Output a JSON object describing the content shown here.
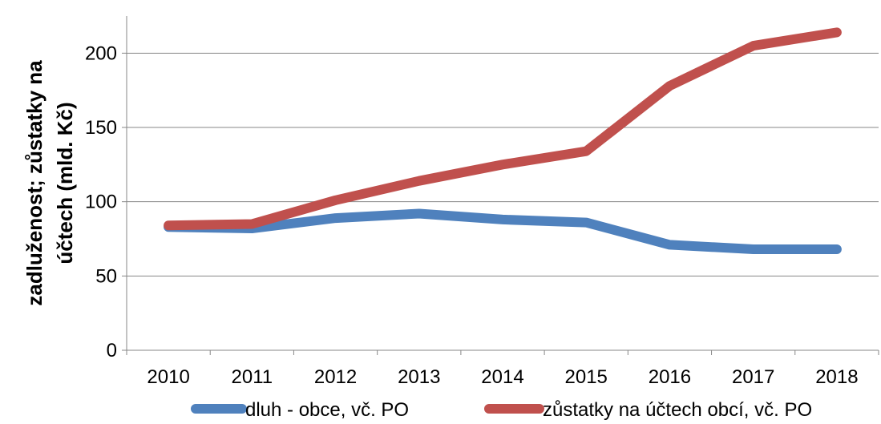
{
  "chart_data": {
    "type": "line",
    "title": "",
    "xlabel": "",
    "ylabel_lines": [
      "zadluženost; zůstatky na",
      "účtech (mld. Kč)"
    ],
    "categories": [
      "2010",
      "2011",
      "2012",
      "2013",
      "2014",
      "2015",
      "2016",
      "2017",
      "2018"
    ],
    "ylim": [
      0,
      225
    ],
    "yticks": [
      0,
      50,
      100,
      150,
      200
    ],
    "grid": true,
    "legend_position": "bottom",
    "series": [
      {
        "name": "dluh - obce, vč. PO",
        "color": "#4f81bd",
        "values": [
          83,
          82,
          89,
          92,
          88,
          86,
          71,
          68,
          68
        ]
      },
      {
        "name": "zůstatky na účtech obcí, vč. PO",
        "color": "#c0504d",
        "values": [
          84,
          85,
          101,
          114,
          125,
          134,
          178,
          205,
          214
        ]
      }
    ]
  }
}
